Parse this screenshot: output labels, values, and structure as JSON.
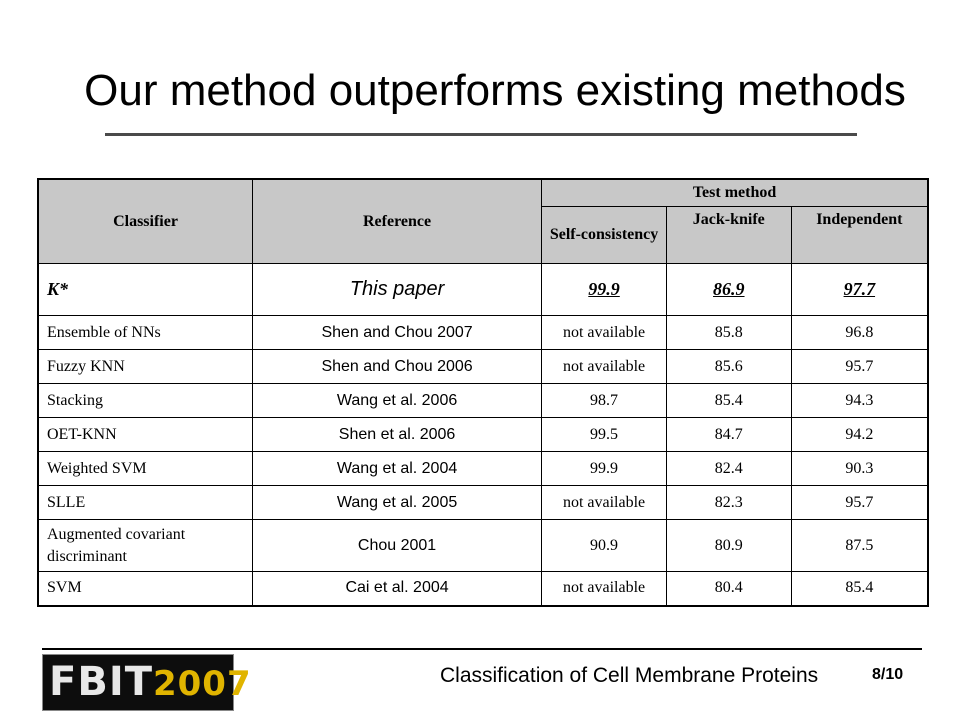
{
  "slide": {
    "title": "Our method outperforms existing methods",
    "footer_text": "Classification of Cell Membrane Proteins",
    "page_number": "8/10",
    "logo": {
      "text": "FBIT",
      "year": "2007"
    }
  },
  "table": {
    "headers": {
      "classifier": "Classifier",
      "reference": "Reference",
      "test_method": "Test method",
      "self_consistency": "Self-consistency",
      "jackknife": "Jack-knife",
      "independent": "Independent"
    },
    "ours": {
      "classifier": "K*",
      "reference": "This paper",
      "self": "99.9",
      "jack": "86.9",
      "indep": "97.7"
    },
    "rows": [
      {
        "classifier": "Ensemble of NNs",
        "reference": "Shen and Chou 2007",
        "self": "not available",
        "jack": "85.8",
        "indep": "96.8"
      },
      {
        "classifier": "Fuzzy KNN",
        "reference": "Shen and Chou 2006",
        "self": "not available",
        "jack": "85.6",
        "indep": "95.7"
      },
      {
        "classifier": "Stacking",
        "reference": "Wang et al. 2006",
        "self": "98.7",
        "jack": "85.4",
        "indep": "94.3"
      },
      {
        "classifier": "OET-KNN",
        "reference": "Shen et al. 2006",
        "self": "99.5",
        "jack": "84.7",
        "indep": "94.2"
      },
      {
        "classifier": "Weighted SVM",
        "reference": "Wang et al. 2004",
        "self": "99.9",
        "jack": "82.4",
        "indep": "90.3"
      },
      {
        "classifier": "SLLE",
        "reference": "Wang et al. 2005",
        "self": "not available",
        "jack": "82.3",
        "indep": "95.7"
      },
      {
        "classifier": "Augmented covariant discriminant",
        "reference": "Chou 2001",
        "self": "90.9",
        "jack": "80.9",
        "indep": "87.5"
      },
      {
        "classifier": "SVM",
        "reference": "Cai et al. 2004",
        "self": "not available",
        "jack": "80.4",
        "indep": "85.4"
      }
    ]
  }
}
